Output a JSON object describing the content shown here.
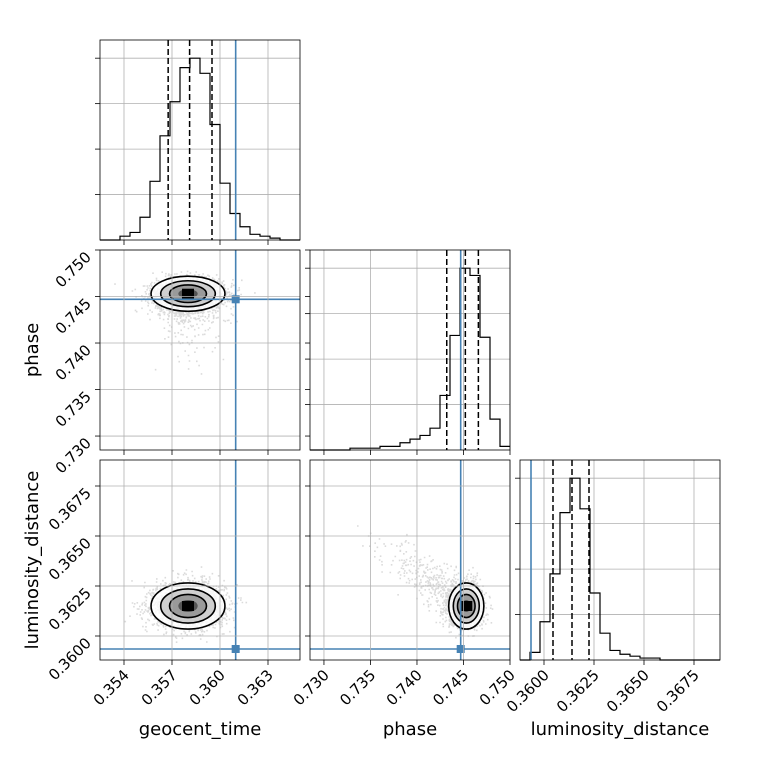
{
  "chart_data": {
    "type": "corner",
    "parameters": [
      "geocent_time",
      "phase",
      "luminosity_distance"
    ],
    "axis_labels": {
      "geocent_time": "geocent_time",
      "phase": "phase",
      "luminosity_distance": "luminosity_distance"
    },
    "ranges": {
      "geocent_time": [
        0.3525,
        0.365
      ],
      "phase": [
        0.7285,
        0.75
      ],
      "luminosity_distance": [
        0.3588,
        0.3688
      ]
    },
    "ticks": {
      "geocent_time": {
        "values": [
          0.354,
          0.357,
          0.36,
          0.363
        ],
        "labels": [
          "0.354",
          "0.357",
          "0.360",
          "0.363"
        ]
      },
      "phase": {
        "values": [
          0.73,
          0.735,
          0.74,
          0.745,
          0.75
        ],
        "labels": [
          "0.730",
          "0.735",
          "0.740",
          "0.745",
          "0.750"
        ]
      },
      "luminosity_distance": {
        "values": [
          0.36,
          0.3625,
          0.365,
          0.3675
        ],
        "labels": [
          "0.3600",
          "0.3625",
          "0.3650",
          "0.3675"
        ]
      }
    },
    "truths": {
      "geocent_time": 0.36098,
      "phase": 0.7447,
      "luminosity_distance": 0.35935
    },
    "quantiles": {
      "geocent_time": [
        0.35676,
        0.3581,
        0.3595
      ],
      "phase": [
        0.7432,
        0.7452,
        0.7466
      ],
      "luminosity_distance": [
        0.36045,
        0.3614,
        0.36225
      ]
    },
    "modes": {
      "geocent_time": 0.358,
      "phase": 0.7453,
      "luminosity_distance": 0.3615
    },
    "spreads": {
      "geocent_time": [
        0.0011,
        0.0011
      ],
      "phase": [
        0.001,
        0.0008
      ],
      "luminosity_distance": [
        0.0005,
        0.0006
      ]
    },
    "histograms": {
      "geocent_time": {
        "bin_edges": [
          0.3525,
          0.353125,
          0.35375,
          0.354375,
          0.355,
          0.355625,
          0.35625,
          0.356875,
          0.3575,
          0.358125,
          0.35875,
          0.359375,
          0.36,
          0.360625,
          0.36125,
          0.361875,
          0.3625,
          0.363125,
          0.36375,
          0.364375,
          0.365
        ],
        "counts": [
          0,
          0,
          2,
          4,
          12,
          31,
          55,
          73,
          91,
          96,
          88,
          61,
          30,
          14,
          7,
          3,
          2,
          1,
          0,
          0
        ]
      },
      "phase": {
        "bin_edges": [
          0.7285,
          0.729575,
          0.73065,
          0.731725,
          0.7328,
          0.733875,
          0.73495,
          0.736025,
          0.7371,
          0.738175,
          0.73925,
          0.740325,
          0.7414,
          0.742475,
          0.74355,
          0.744625,
          0.7457,
          0.746775,
          0.74785,
          0.748925,
          0.75
        ],
        "counts": [
          0,
          0,
          0,
          0,
          1,
          1,
          1,
          2,
          2,
          4,
          6,
          8,
          12,
          30,
          63,
          100,
          96,
          62,
          17,
          2
        ]
      },
      "luminosity_distance": {
        "bin_edges": [
          0.3588,
          0.3593,
          0.3598,
          0.3603,
          0.3608,
          0.3613,
          0.3618,
          0.3623,
          0.3628,
          0.3633,
          0.3638,
          0.3643,
          0.3648,
          0.3653,
          0.3658,
          0.3663,
          0.3668,
          0.3673,
          0.3678,
          0.3683,
          0.3688
        ],
        "counts": [
          0,
          4,
          20,
          45,
          77,
          95,
          79,
          35,
          14,
          5,
          3,
          2,
          1,
          1,
          0,
          0,
          0,
          0,
          0,
          0
        ]
      }
    },
    "grid": true,
    "truth_color": "#4682b4"
  }
}
